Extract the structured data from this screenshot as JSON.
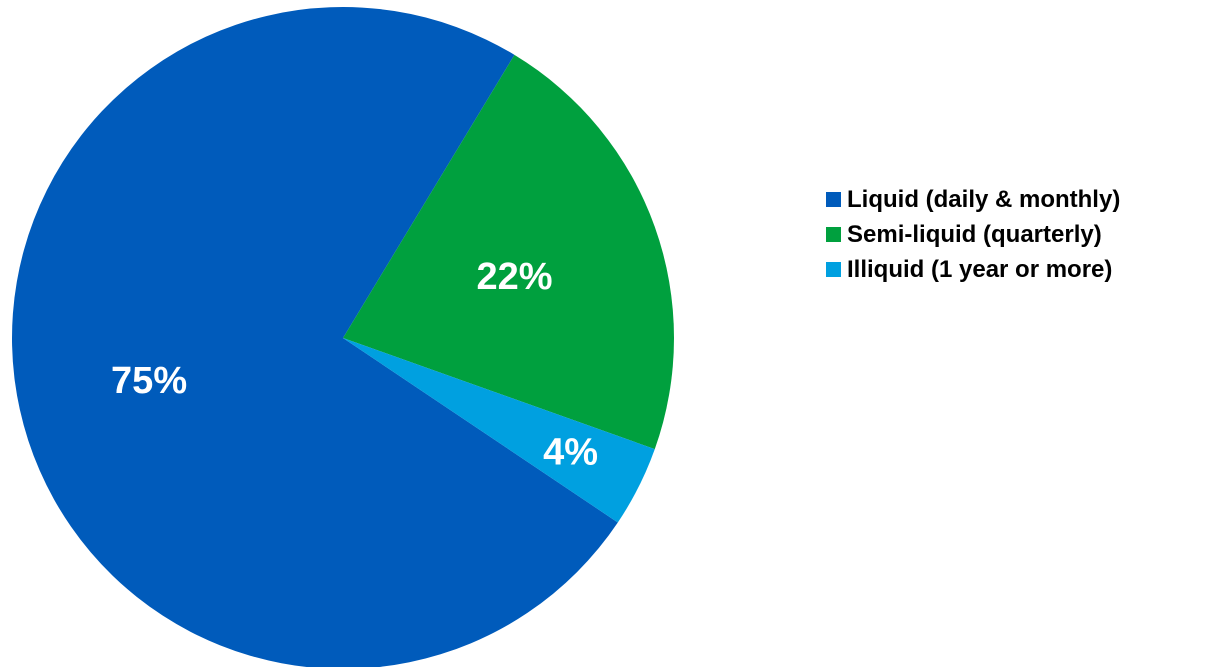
{
  "chart_data": {
    "type": "pie",
    "title": "",
    "categories": [
      "Liquid (daily & monthly)",
      "Semi-liquid (quarterly)",
      "Illiquid (1 year or more)"
    ],
    "values": [
      75,
      22,
      4
    ],
    "data_labels": [
      "75%",
      "22%",
      "4%"
    ],
    "colors": [
      "#005BBB",
      "#00A03E",
      "#00A0E0"
    ],
    "legend_position": "right",
    "start_direction": "counter-clockwise from 3 o'clock"
  }
}
